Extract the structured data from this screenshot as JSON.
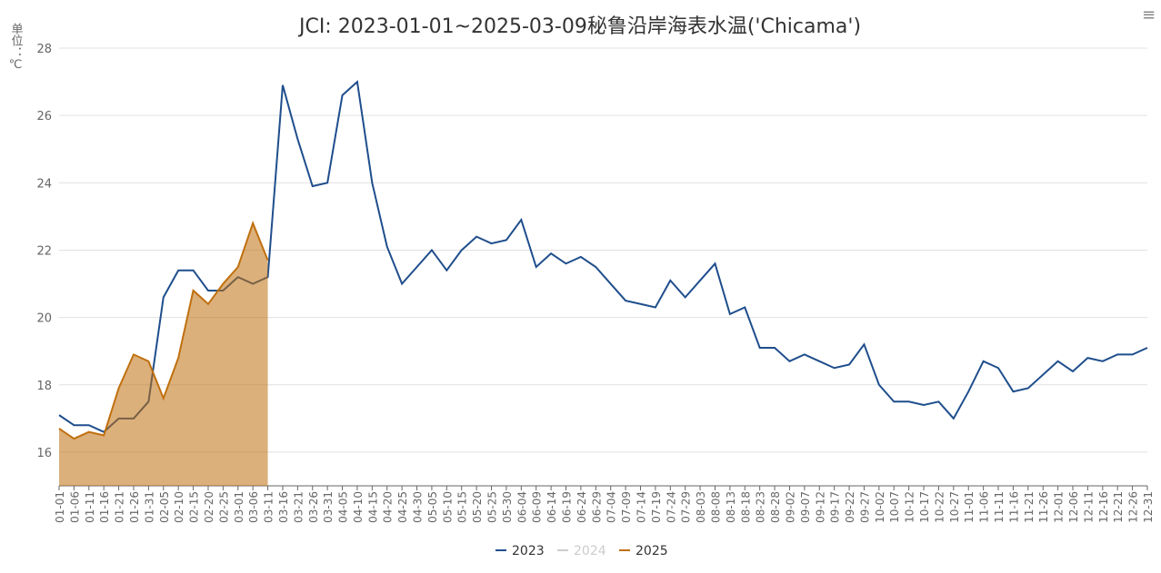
{
  "chart_data": {
    "type": "line",
    "title": "JCI: 2023-01-01~2025-03-09秘鲁沿岸海表水温('Chicama')",
    "y_label": "单位：℃",
    "categories": [
      "01-01",
      "01-06",
      "01-11",
      "01-16",
      "01-21",
      "01-26",
      "01-31",
      "02-05",
      "02-10",
      "02-15",
      "02-20",
      "02-25",
      "03-01",
      "03-06",
      "03-11",
      "03-16",
      "03-21",
      "03-26",
      "03-31",
      "04-05",
      "04-10",
      "04-15",
      "04-20",
      "04-25",
      "04-30",
      "05-05",
      "05-10",
      "05-15",
      "05-20",
      "05-25",
      "05-30",
      "06-04",
      "06-09",
      "06-14",
      "06-19",
      "06-24",
      "06-29",
      "07-04",
      "07-09",
      "07-14",
      "07-19",
      "07-24",
      "07-29",
      "08-03",
      "08-08",
      "08-13",
      "08-18",
      "08-23",
      "08-28",
      "09-02",
      "09-07",
      "09-12",
      "09-17",
      "09-22",
      "09-27",
      "10-02",
      "10-07",
      "10-12",
      "10-17",
      "10-22",
      "10-27",
      "11-01",
      "11-06",
      "11-11",
      "11-16",
      "11-21",
      "11-26",
      "12-01",
      "12-06",
      "12-11",
      "12-16",
      "12-21",
      "12-26",
      "12-31"
    ],
    "series": [
      {
        "name": "2023",
        "color": "#1f4e8c",
        "values": [
          17.1,
          16.8,
          16.8,
          16.6,
          17.0,
          17.0,
          17.5,
          20.6,
          21.4,
          21.4,
          20.8,
          20.8,
          21.2,
          21.0,
          21.2,
          26.9,
          25.3,
          23.9,
          24.0,
          26.6,
          27.0,
          24.0,
          22.1,
          21.0,
          21.5,
          22.0,
          21.4,
          22.0,
          22.4,
          22.2,
          22.3,
          22.9,
          21.5,
          21.9,
          21.6,
          21.8,
          21.5,
          21.0,
          20.5,
          20.4,
          20.3,
          21.1,
          20.6,
          21.1,
          21.6,
          20.1,
          20.3,
          19.1,
          19.1,
          18.7,
          18.9,
          18.7,
          18.5,
          18.6,
          19.2,
          18.0,
          17.5,
          17.5,
          17.4,
          17.5,
          17.0,
          17.8,
          18.7,
          18.5,
          17.8,
          17.9,
          18.3,
          18.7,
          18.4,
          18.8,
          18.7,
          18.9,
          18.9,
          19.1
        ]
      },
      {
        "name": "2024",
        "color": "#cccccc",
        "hidden": true,
        "values": [
          null,
          null,
          null,
          null,
          null,
          null,
          null,
          null,
          null,
          null,
          null,
          null,
          null,
          null,
          null,
          null,
          null,
          null,
          null,
          null,
          null,
          null,
          null,
          null,
          null,
          null,
          null,
          null,
          null,
          null,
          null,
          null,
          null,
          null,
          null,
          null,
          null,
          null,
          null,
          null,
          null,
          null,
          null,
          null,
          null,
          null,
          null,
          null,
          null,
          null,
          null,
          null,
          null,
          null,
          null,
          null,
          null,
          null,
          null,
          null,
          null,
          null,
          null,
          null,
          null,
          null,
          null,
          null,
          null,
          null,
          null,
          null,
          null,
          null
        ]
      },
      {
        "name": "2025",
        "color": "#c0700f",
        "area": true,
        "values": [
          16.7,
          16.4,
          16.6,
          16.5,
          17.9,
          18.9,
          18.7,
          17.6,
          18.8,
          20.8,
          20.4,
          21.0,
          21.5,
          22.8,
          21.7,
          null,
          null,
          null,
          null,
          null,
          null,
          null,
          null,
          null,
          null,
          null,
          null,
          null,
          null,
          null,
          null,
          null,
          null,
          null,
          null,
          null,
          null,
          null,
          null,
          null,
          null,
          null,
          null,
          null,
          null,
          null,
          null,
          null,
          null,
          null,
          null,
          null,
          null,
          null,
          null,
          null,
          null,
          null,
          null,
          null,
          null,
          null,
          null,
          null,
          null,
          null,
          null,
          null,
          null,
          null,
          null,
          null,
          null,
          null
        ]
      }
    ],
    "ylim": [
      15,
      28
    ],
    "yticks": [
      16,
      18,
      20,
      22,
      24,
      26,
      28
    ],
    "grid": true
  }
}
